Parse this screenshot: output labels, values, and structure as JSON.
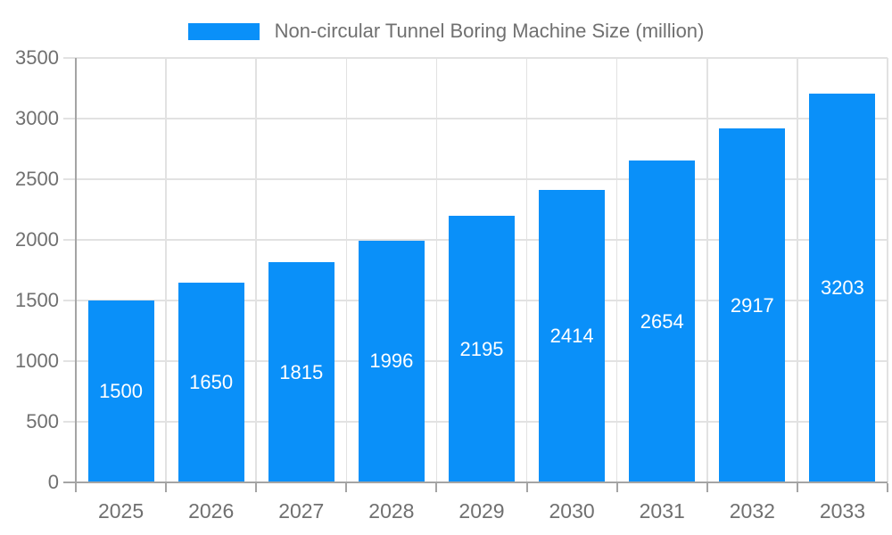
{
  "chart_data": {
    "type": "bar",
    "title": "",
    "legend": {
      "position": "top",
      "label": "Non-circular Tunnel Boring Machine Size (million)"
    },
    "categories": [
      "2025",
      "2026",
      "2027",
      "2028",
      "2029",
      "2030",
      "2031",
      "2032",
      "2033"
    ],
    "series": [
      {
        "name": "Non-circular Tunnel Boring Machine Size (million)",
        "values": [
          1500,
          1650,
          1815,
          1996,
          2195,
          2414,
          2654,
          2917,
          3203
        ]
      }
    ],
    "xlabel": "",
    "ylabel": "",
    "ylim": [
      0,
      3500
    ],
    "ytick_step": 500,
    "ytick_labels": [
      "0",
      "500",
      "1000",
      "1500",
      "2000",
      "2500",
      "3000",
      "3500"
    ],
    "grid": true,
    "value_labels": "inside-center",
    "colors": {
      "bar": "#0a90f9",
      "grid": "#e2e2e2",
      "axis": "#a4a4a4",
      "text": "#707070",
      "value_label_text": "#ffffff",
      "background": "#ffffff"
    }
  }
}
